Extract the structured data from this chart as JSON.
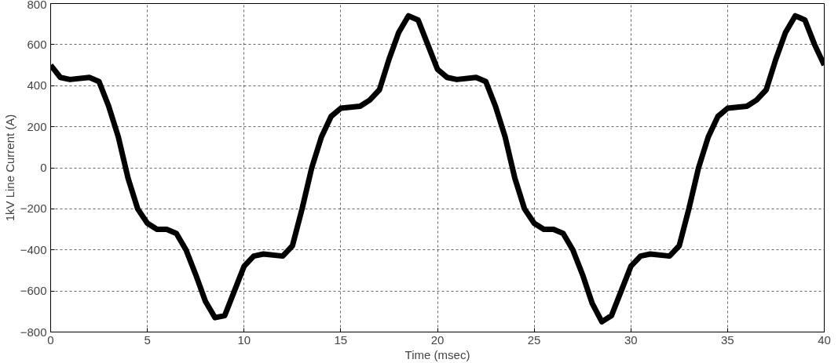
{
  "chart_data": {
    "type": "line",
    "xlabel": "Time (msec)",
    "ylabel": "1kV Line Current (A)",
    "xlim": [
      0,
      40
    ],
    "ylim": [
      -800,
      800
    ],
    "xticks": [
      0,
      5,
      10,
      15,
      20,
      25,
      30,
      35,
      40
    ],
    "yticks": [
      -800,
      -600,
      -400,
      -200,
      0,
      200,
      400,
      600,
      800
    ],
    "grid": true,
    "line_style": "solid",
    "marker": "none",
    "series": [
      {
        "color": "#000000",
        "x": [
          0,
          0.5,
          1,
          2,
          2.5,
          3,
          3.5,
          4,
          4.5,
          5,
          5.5,
          6,
          6.5,
          7,
          7.5,
          8,
          8.5,
          9,
          9.5,
          10,
          10.5,
          11,
          12,
          12.5,
          13,
          13.5,
          14,
          14.5,
          15,
          16,
          16.5,
          17,
          17.5,
          18,
          18.5,
          19,
          19.5,
          20,
          20.5,
          21,
          22,
          22.5,
          23,
          23.5,
          24,
          24.5,
          25,
          25.5,
          26,
          26.5,
          27,
          27.5,
          28,
          28.5,
          29,
          29.5,
          30,
          30.5,
          31,
          32,
          32.5,
          33,
          33.5,
          34,
          34.5,
          35,
          36,
          36.5,
          37,
          37.5,
          38,
          38.5,
          39,
          39.5,
          40
        ],
        "values": [
          500,
          440,
          430,
          440,
          420,
          300,
          150,
          -50,
          -200,
          -270,
          -300,
          -300,
          -320,
          -400,
          -520,
          -650,
          -730,
          -720,
          -600,
          -480,
          -430,
          -420,
          -430,
          -380,
          -200,
          0,
          150,
          250,
          290,
          300,
          330,
          380,
          530,
          660,
          740,
          720,
          600,
          480,
          440,
          430,
          440,
          420,
          300,
          150,
          -50,
          -200,
          -270,
          -300,
          -300,
          -320,
          -400,
          -520,
          -660,
          -750,
          -720,
          -600,
          -480,
          -430,
          -420,
          -430,
          -380,
          -200,
          0,
          150,
          250,
          290,
          300,
          330,
          380,
          530,
          660,
          740,
          720,
          600,
          500
        ]
      }
    ]
  }
}
